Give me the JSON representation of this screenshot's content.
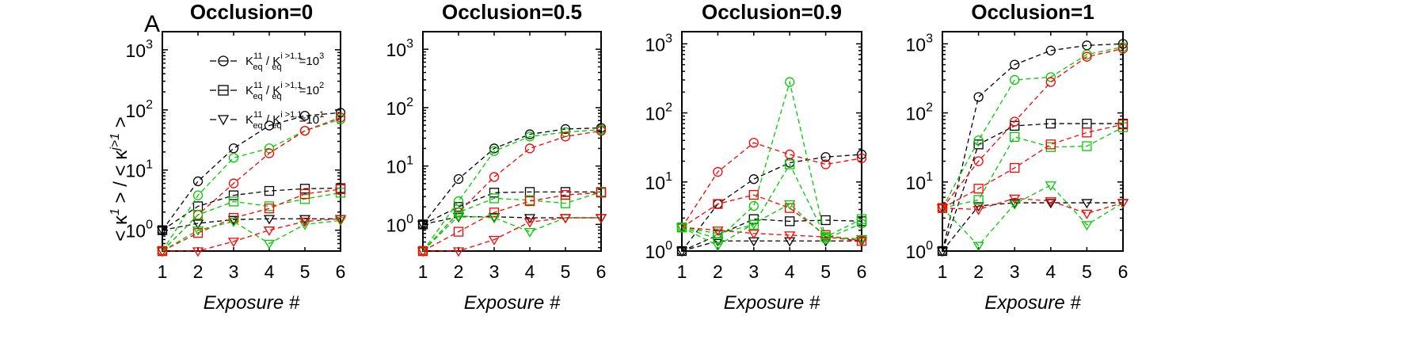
{
  "figure": {
    "panel_letter": "A",
    "ylabel": "< κ¹ > / < κʲᵗ¹ >",
    "ylabel_main_1": "< κ",
    "ylabel_sup_1": "1",
    "ylabel_main_2": " > / < κ",
    "ylabel_sup_2": "j>1",
    "ylabel_main_3": " >"
  },
  "legend": {
    "placement": "top-left of first panel",
    "items": [
      {
        "marker": "circle",
        "label_base": "K",
        "label_sub1": "eq",
        "label_sup1": "11",
        "label_mid": " / K",
        "label_sub2": "eq",
        "label_sup2": "i >1,1",
        "label_tail": "=10",
        "label_exp": "3"
      },
      {
        "marker": "square",
        "label_base": "K",
        "label_sub1": "eq",
        "label_sup1": "11",
        "label_mid": " / K",
        "label_sub2": "eq",
        "label_sup2": "i >1,1",
        "label_tail": "=10",
        "label_exp": "2"
      },
      {
        "marker": "triangle",
        "label_base": "K",
        "label_sub1": "eq",
        "label_sup1": "11",
        "label_mid": " / K",
        "label_sub2": "eq",
        "label_sup2": "i >1,1",
        "label_tail": "=10",
        "label_exp": "1"
      }
    ]
  },
  "colors": {
    "black": "#000000",
    "red": "#ff0000",
    "green": "#00cc00"
  },
  "chart_data": [
    {
      "type": "line",
      "title": "Occlusion=0",
      "xlabel": "Exposure #",
      "ylabel": "< κ1 > / < κj>1 >",
      "yscale": "log",
      "x": [
        1,
        2,
        3,
        4,
        5,
        6
      ],
      "xlim": [
        1,
        6
      ],
      "ylim": [
        0.45,
        2000
      ],
      "yticks": [
        1,
        10,
        100,
        1000
      ],
      "ytick_labels": [
        {
          "base": "10",
          "exp": "0"
        },
        {
          "base": "10",
          "exp": "1"
        },
        {
          "base": "10",
          "exp": "2"
        },
        {
          "base": "10",
          "exp": "3"
        }
      ],
      "xtick_labels": [
        "1",
        "2",
        "3",
        "4",
        "5",
        "6"
      ],
      "series": [
        {
          "color": "black",
          "marker": "circle",
          "values": [
            1.0,
            6.5,
            23,
            55,
            80,
            90
          ]
        },
        {
          "color": "black",
          "marker": "square",
          "values": [
            1.0,
            2.5,
            3.8,
            4.5,
            4.9,
            5.0
          ]
        },
        {
          "color": "black",
          "marker": "triangle",
          "values": [
            1.0,
            1.3,
            1.5,
            1.55,
            1.55,
            1.55
          ]
        },
        {
          "color": "green",
          "marker": "circle",
          "values": [
            0.45,
            3.8,
            16,
            23,
            45,
            70
          ]
        },
        {
          "color": "red",
          "marker": "circle",
          "values": [
            0.45,
            1.8,
            6.0,
            19,
            45,
            75
          ]
        },
        {
          "color": "green",
          "marker": "square",
          "values": [
            0.45,
            1.8,
            3.0,
            2.5,
            3.3,
            4.2
          ]
        },
        {
          "color": "red",
          "marker": "square",
          "values": [
            0.45,
            0.9,
            1.6,
            2.3,
            4.0,
            4.8
          ]
        },
        {
          "color": "green",
          "marker": "triangle",
          "values": [
            0.45,
            1.0,
            1.4,
            0.6,
            1.25,
            1.45
          ]
        },
        {
          "color": "red",
          "marker": "triangle",
          "values": [
            0.45,
            0.45,
            0.65,
            1.0,
            1.4,
            1.55
          ]
        }
      ]
    },
    {
      "type": "line",
      "title": "Occlusion=0.5",
      "xlabel": "Exposure #",
      "yscale": "log",
      "x": [
        1,
        2,
        3,
        4,
        5,
        6
      ],
      "xlim": [
        1,
        6
      ],
      "ylim": [
        0.35,
        2000
      ],
      "yticks": [
        1,
        10,
        100,
        1000
      ],
      "ytick_labels": [
        {
          "base": "10",
          "exp": "0"
        },
        {
          "base": "10",
          "exp": "1"
        },
        {
          "base": "10",
          "exp": "2"
        },
        {
          "base": "10",
          "exp": "3"
        }
      ],
      "xtick_labels": [
        "1",
        "2",
        "3",
        "4",
        "5",
        "6"
      ],
      "series": [
        {
          "color": "black",
          "marker": "circle",
          "values": [
            1.0,
            6.0,
            20,
            35,
            43,
            45
          ]
        },
        {
          "color": "black",
          "marker": "square",
          "values": [
            1.0,
            2.0,
            3.5,
            3.6,
            3.6,
            3.6
          ]
        },
        {
          "color": "black",
          "marker": "triangle",
          "values": [
            1.0,
            1.35,
            1.35,
            1.3,
            1.3,
            1.3
          ]
        },
        {
          "color": "green",
          "marker": "circle",
          "values": [
            0.35,
            2.5,
            18,
            32,
            38,
            42
          ]
        },
        {
          "color": "red",
          "marker": "circle",
          "values": [
            0.35,
            1.6,
            6.5,
            20,
            32,
            40
          ]
        },
        {
          "color": "green",
          "marker": "square",
          "values": [
            0.35,
            1.6,
            2.8,
            2.6,
            2.3,
            3.6
          ]
        },
        {
          "color": "red",
          "marker": "square",
          "values": [
            0.35,
            0.75,
            1.6,
            2.5,
            3.2,
            3.5
          ]
        },
        {
          "color": "green",
          "marker": "triangle",
          "values": [
            0.35,
            1.4,
            1.3,
            0.75,
            1.3,
            1.3
          ]
        },
        {
          "color": "red",
          "marker": "triangle",
          "values": [
            0.35,
            0.35,
            0.55,
            1.1,
            1.3,
            1.3
          ]
        }
      ]
    },
    {
      "type": "line",
      "title": "Occlusion=0.9",
      "xlabel": "Exposure #",
      "yscale": "log",
      "x": [
        1,
        2,
        3,
        4,
        5,
        6
      ],
      "xlim": [
        1,
        6
      ],
      "ylim": [
        1,
        1500
      ],
      "yticks": [
        1,
        10,
        100,
        1000
      ],
      "ytick_labels": [
        {
          "base": "10",
          "exp": "0"
        },
        {
          "base": "10",
          "exp": "1"
        },
        {
          "base": "10",
          "exp": "2"
        },
        {
          "base": "10",
          "exp": "3"
        }
      ],
      "xtick_labels": [
        "1",
        "2",
        "3",
        "4",
        "5",
        "6"
      ],
      "series": [
        {
          "color": "black",
          "marker": "circle",
          "values": [
            1.0,
            4.8,
            11,
            19,
            23,
            25
          ]
        },
        {
          "color": "black",
          "marker": "square",
          "values": [
            1.0,
            1.7,
            2.9,
            2.7,
            2.8,
            2.7
          ]
        },
        {
          "color": "black",
          "marker": "triangle",
          "values": [
            1.0,
            1.4,
            1.4,
            1.4,
            1.4,
            1.4
          ]
        },
        {
          "color": "red",
          "marker": "circle",
          "values": [
            2.2,
            14,
            37,
            25,
            18,
            22
          ]
        },
        {
          "color": "green",
          "marker": "circle",
          "values": [
            2.2,
            1.5,
            4.5,
            280,
            1.5,
            2.5
          ]
        },
        {
          "color": "red",
          "marker": "square",
          "values": [
            2.2,
            4.8,
            6.5,
            4.2,
            1.7,
            1.4
          ]
        },
        {
          "color": "green",
          "marker": "square",
          "values": [
            2.2,
            1.8,
            2.4,
            18,
            1.6,
            2.9
          ]
        },
        {
          "color": "red",
          "marker": "triangle",
          "values": [
            2.2,
            2.0,
            1.8,
            1.7,
            1.6,
            1.4
          ]
        },
        {
          "color": "green",
          "marker": "triangle",
          "values": [
            2.2,
            1.2,
            2.5,
            4.8,
            1.6,
            1.5
          ]
        }
      ]
    },
    {
      "type": "line",
      "title": "Occlusion=1",
      "xlabel": "Exposure #",
      "yscale": "log",
      "x": [
        1,
        2,
        3,
        4,
        5,
        6
      ],
      "xlim": [
        1,
        6
      ],
      "ylim": [
        1,
        1500
      ],
      "yticks": [
        1,
        10,
        100,
        1000
      ],
      "ytick_labels": [
        {
          "base": "10",
          "exp": "0"
        },
        {
          "base": "10",
          "exp": "1"
        },
        {
          "base": "10",
          "exp": "2"
        },
        {
          "base": "10",
          "exp": "3"
        }
      ],
      "xtick_labels": [
        "1",
        "2",
        "3",
        "4",
        "5",
        "6"
      ],
      "series": [
        {
          "color": "black",
          "marker": "circle",
          "values": [
            1.0,
            170,
            500,
            800,
            950,
            1000
          ]
        },
        {
          "color": "black",
          "marker": "square",
          "values": [
            1.0,
            35,
            65,
            70,
            70,
            70
          ]
        },
        {
          "color": "black",
          "marker": "triangle",
          "values": [
            1.0,
            4.5,
            5.0,
            5.0,
            5.0,
            5.0
          ]
        },
        {
          "color": "green",
          "marker": "circle",
          "values": [
            4.2,
            40,
            300,
            330,
            700,
            900
          ]
        },
        {
          "color": "red",
          "marker": "circle",
          "values": [
            4.2,
            20,
            75,
            280,
            650,
            850
          ]
        },
        {
          "color": "green",
          "marker": "square",
          "values": [
            4.2,
            5.5,
            45,
            32,
            33,
            62
          ]
        },
        {
          "color": "red",
          "marker": "square",
          "values": [
            4.2,
            8.0,
            16,
            35,
            52,
            68
          ]
        },
        {
          "color": "green",
          "marker": "triangle",
          "values": [
            4.2,
            1.2,
            4.8,
            9.0,
            2.4,
            5.0
          ]
        },
        {
          "color": "red",
          "marker": "triangle",
          "values": [
            4.2,
            4.0,
            5.8,
            5.3,
            3.5,
            5.0
          ]
        }
      ]
    }
  ]
}
